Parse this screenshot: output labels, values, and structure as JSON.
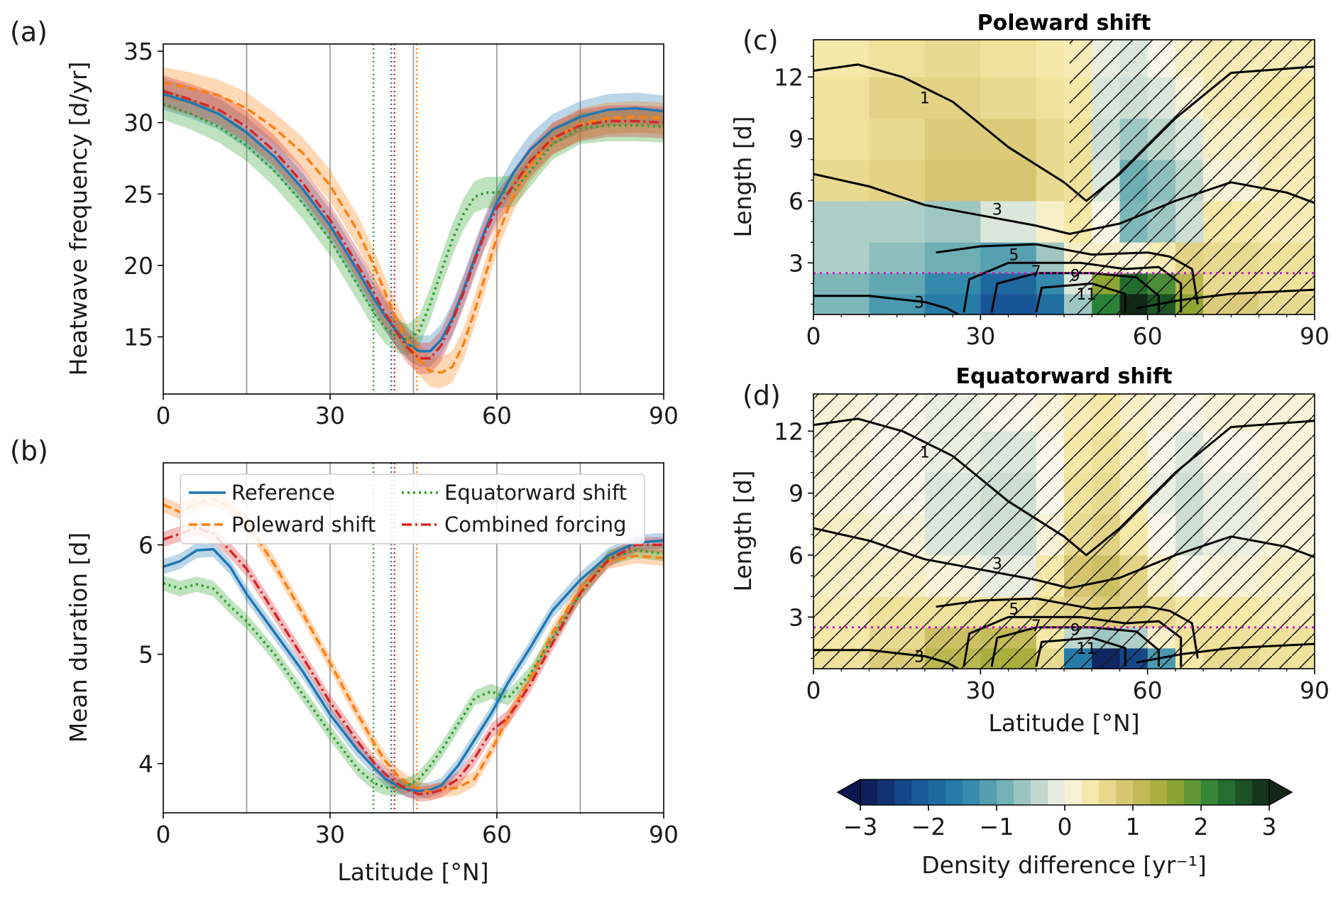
{
  "colors": {
    "reference": "#1f77b4",
    "poleward": "#ff7f0e",
    "equatorward": "#2ca02c",
    "combined": "#d62728",
    "threshold_line": "#c51bc5"
  },
  "panels": {
    "a": {
      "label": "(a)",
      "ylabel": "Heatwave frequency [d/yr]",
      "xlabel": ""
    },
    "b": {
      "label": "(b)",
      "ylabel": "Mean duration [d]",
      "xlabel": "Latitude [°N]"
    },
    "c": {
      "label": "(c)",
      "title": "Poleward shift",
      "ylabel": "Length [d]",
      "xlabel": ""
    },
    "d": {
      "label": "(d)",
      "title": "Equatorward shift",
      "ylabel": "Length [d]",
      "xlabel": "Latitude [°N]"
    }
  },
  "legend": {
    "reference": "Reference",
    "poleward": "Poleward shift",
    "equatorward": "Equatorward shift",
    "combined": "Combined forcing"
  },
  "colorbar": {
    "label": "Density difference [yr⁻¹]",
    "ticks": [
      "−3",
      "−2",
      "−1",
      "0",
      "1",
      "2",
      "3"
    ],
    "range": [
      -3,
      3
    ]
  },
  "chart_data": [
    {
      "panel": "a",
      "type": "line",
      "xlabel": "",
      "ylabel": "Heatwave frequency [d/yr]",
      "xlim": [
        0,
        90
      ],
      "ylim": [
        11,
        35.5
      ],
      "xticks": [
        "0",
        "30",
        "60",
        "90"
      ],
      "yticks": [
        "15",
        "20",
        "25",
        "30",
        "35"
      ],
      "grid_x": [
        15,
        30,
        45,
        60,
        75
      ],
      "vlines": [
        {
          "series": "Equatorward shift",
          "x": 37.8
        },
        {
          "series": "Reference",
          "x": 41.0
        },
        {
          "series": "Combined forcing",
          "x": 41.6
        },
        {
          "series": "Poleward shift",
          "x": 45.6
        }
      ],
      "x": [
        0,
        5,
        10,
        15,
        20,
        25,
        30,
        35,
        38,
        40,
        42,
        44,
        46,
        48,
        50,
        52,
        54,
        56,
        58,
        60,
        63,
        66,
        70,
        75,
        80,
        85,
        90
      ],
      "series": [
        {
          "name": "Reference",
          "values": [
            32.0,
            31.4,
            30.6,
            29.3,
            27.6,
            25.4,
            22.8,
            19.6,
            17.6,
            16.4,
            15.4,
            14.5,
            14.0,
            14.0,
            14.8,
            16.3,
            18.3,
            20.5,
            22.6,
            24.4,
            26.5,
            28.1,
            29.5,
            30.4,
            30.9,
            31.0,
            30.8
          ]
        },
        {
          "name": "Poleward shift",
          "values": [
            32.8,
            32.4,
            31.9,
            31.0,
            29.6,
            27.9,
            25.6,
            22.4,
            19.9,
            18.0,
            16.2,
            14.6,
            13.4,
            12.6,
            12.5,
            12.9,
            14.5,
            16.8,
            19.4,
            22.0,
            24.9,
            27.0,
            28.8,
            29.9,
            30.3,
            30.4,
            30.3
          ]
        },
        {
          "name": "Equatorward shift",
          "values": [
            31.3,
            30.6,
            29.7,
            28.4,
            26.6,
            24.4,
            21.8,
            18.6,
            16.6,
            15.6,
            15.0,
            14.8,
            15.4,
            17.3,
            19.6,
            21.8,
            23.6,
            24.8,
            25.1,
            25.1,
            25.2,
            26.6,
            28.5,
            29.6,
            29.8,
            29.8,
            29.7
          ]
        },
        {
          "name": "Combined forcing",
          "values": [
            32.2,
            31.6,
            30.9,
            29.7,
            28.0,
            25.8,
            23.2,
            20.0,
            18.0,
            16.6,
            15.3,
            14.2,
            13.5,
            13.5,
            14.4,
            16.1,
            18.1,
            20.3,
            22.4,
            24.0,
            25.6,
            27.3,
            28.9,
            29.8,
            30.1,
            30.1,
            30.0
          ]
        }
      ]
    },
    {
      "panel": "b",
      "type": "line",
      "xlabel": "Latitude [°N]",
      "ylabel": "Mean duration [d]",
      "xlim": [
        0,
        90
      ],
      "ylim": [
        3.55,
        6.75
      ],
      "xticks": [
        "0",
        "30",
        "60",
        "90"
      ],
      "yticks": [
        "4",
        "5",
        "6"
      ],
      "grid_x": [
        15,
        30,
        45,
        60,
        75
      ],
      "legend_position": "top-center",
      "vlines": [
        {
          "series": "Equatorward shift",
          "x": 37.8
        },
        {
          "series": "Reference",
          "x": 41.0
        },
        {
          "series": "Combined forcing",
          "x": 41.6
        },
        {
          "series": "Poleward shift",
          "x": 45.6
        }
      ],
      "x": [
        0,
        3,
        6,
        9,
        12,
        15,
        20,
        25,
        30,
        35,
        38,
        40,
        42,
        44,
        46,
        48,
        50,
        53,
        56,
        59,
        62,
        66,
        70,
        75,
        80,
        85,
        90
      ],
      "series": [
        {
          "name": "Reference",
          "values": [
            5.8,
            5.85,
            5.95,
            5.96,
            5.8,
            5.55,
            5.2,
            4.85,
            4.45,
            4.12,
            3.96,
            3.86,
            3.8,
            3.76,
            3.75,
            3.76,
            3.8,
            3.98,
            4.22,
            4.46,
            4.74,
            5.06,
            5.4,
            5.68,
            5.9,
            6.02,
            6.04
          ]
        },
        {
          "name": "Poleward shift",
          "values": [
            6.37,
            6.3,
            6.38,
            6.42,
            6.35,
            6.2,
            5.82,
            5.38,
            4.92,
            4.45,
            4.18,
            4.02,
            3.9,
            3.82,
            3.77,
            3.74,
            3.76,
            3.78,
            3.86,
            4.12,
            4.42,
            4.78,
            5.2,
            5.6,
            5.85,
            5.9,
            5.88
          ]
        },
        {
          "name": "Equatorward shift",
          "values": [
            5.65,
            5.6,
            5.64,
            5.6,
            5.44,
            5.3,
            5.0,
            4.64,
            4.28,
            3.95,
            3.82,
            3.78,
            3.78,
            3.8,
            3.86,
            3.98,
            4.12,
            4.36,
            4.6,
            4.66,
            4.6,
            4.82,
            5.15,
            5.55,
            5.88,
            5.95,
            5.92
          ]
        },
        {
          "name": "Combined forcing",
          "values": [
            6.05,
            6.1,
            6.16,
            6.1,
            5.95,
            5.78,
            5.38,
            4.98,
            4.56,
            4.2,
            4.0,
            3.9,
            3.82,
            3.76,
            3.72,
            3.73,
            3.76,
            3.86,
            4.05,
            4.3,
            4.42,
            4.72,
            5.1,
            5.56,
            5.86,
            6.0,
            6.0
          ]
        }
      ]
    },
    {
      "panel": "c",
      "type": "heatmap",
      "title": "Poleward shift",
      "xlabel": "",
      "ylabel": "Length [d]",
      "xlim": [
        0,
        90
      ],
      "ylim": [
        0.5,
        13.8
      ],
      "xticks": [
        "0",
        "30",
        "60",
        "90"
      ],
      "yticks": [
        "3",
        "6",
        "9",
        "12"
      ],
      "threshold_y": 2.5,
      "hatched_x_range": [
        46,
        90
      ],
      "lat_bands": [
        0,
        10,
        20,
        30,
        40,
        45,
        50,
        55,
        60,
        65,
        70,
        80,
        90
      ],
      "length_bands": [
        0.5,
        1.5,
        2.5,
        4,
        6,
        8,
        10,
        12,
        13.8
      ],
      "values": [
        [
          -0.8,
          -1.2,
          -1.6,
          -2.2,
          -1.8,
          -0.6,
          2.2,
          3.0,
          2.6,
          1.6,
          0.8,
          0.6
        ],
        [
          -0.8,
          -1.0,
          -1.4,
          -1.9,
          -1.4,
          -0.2,
          1.6,
          2.4,
          2.0,
          1.2,
          0.6,
          0.5
        ],
        [
          -0.5,
          -0.7,
          -0.9,
          -1.1,
          -0.6,
          0.2,
          0.2,
          0.1,
          0.3,
          0.7,
          0.6,
          0.5
        ],
        [
          -0.5,
          -0.5,
          -0.6,
          -0.2,
          0.2,
          0.4,
          0.0,
          -0.8,
          -0.6,
          -0.3,
          0.4,
          0.3
        ],
        [
          0.6,
          0.7,
          0.9,
          0.9,
          0.6,
          0.5,
          -0.2,
          -0.9,
          -0.7,
          -0.4,
          0.1,
          0.3
        ],
        [
          0.5,
          0.6,
          0.8,
          0.8,
          0.6,
          0.5,
          -0.3,
          -0.6,
          -0.4,
          -0.2,
          0.2,
          0.3
        ],
        [
          0.5,
          0.7,
          0.7,
          0.6,
          0.5,
          0.4,
          -0.2,
          -0.3,
          -0.2,
          0.1,
          0.3,
          0.4
        ],
        [
          0.4,
          0.5,
          0.6,
          0.5,
          0.4,
          0.3,
          -0.1,
          -0.2,
          0.0,
          0.2,
          0.3,
          0.3
        ]
      ],
      "contour_labels": [
        "1",
        "3",
        "5",
        "7",
        "9",
        "11",
        "3"
      ]
    },
    {
      "panel": "d",
      "type": "heatmap",
      "title": "Equatorward shift",
      "xlabel": "Latitude [°N]",
      "ylabel": "Length [d]",
      "xlim": [
        0,
        90
      ],
      "ylim": [
        0.5,
        13.8
      ],
      "xticks": [
        "0",
        "30",
        "60",
        "90"
      ],
      "yticks": [
        "3",
        "6",
        "9",
        "12"
      ],
      "threshold_y": 2.5,
      "hatched_x_range": [
        0,
        90
      ],
      "lat_bands": [
        0,
        10,
        20,
        30,
        40,
        45,
        50,
        55,
        60,
        65,
        70,
        80,
        90
      ],
      "length_bands": [
        0.5,
        1.5,
        2.5,
        4,
        6,
        8,
        10,
        12,
        13.8
      ],
      "values": [
        [
          0.5,
          0.8,
          1.2,
          1.4,
          0.6,
          -1.6,
          -2.8,
          -2.4,
          -1.2,
          0.4,
          0.6,
          0.5
        ],
        [
          0.4,
          0.6,
          1.0,
          1.1,
          0.4,
          -0.4,
          -0.6,
          -0.5,
          0.2,
          0.5,
          0.5,
          0.5
        ],
        [
          0.3,
          0.5,
          0.5,
          0.5,
          0.6,
          0.7,
          0.8,
          0.7,
          0.6,
          0.4,
          0.4,
          0.3
        ],
        [
          0.2,
          0.2,
          0.1,
          -0.1,
          0.4,
          0.9,
          1.0,
          0.7,
          0.2,
          0.0,
          0.1,
          0.2
        ],
        [
          0.2,
          0.1,
          -0.2,
          -0.3,
          0.1,
          0.6,
          0.7,
          0.4,
          0.0,
          -0.3,
          -0.1,
          0.1
        ],
        [
          0.1,
          0.0,
          -0.2,
          -0.3,
          0.0,
          0.5,
          0.6,
          0.3,
          -0.1,
          -0.3,
          -0.1,
          0.1
        ],
        [
          0.1,
          0.0,
          -0.1,
          -0.2,
          0.0,
          0.4,
          0.5,
          0.3,
          0.0,
          -0.2,
          0.0,
          0.1
        ],
        [
          0.1,
          0.0,
          -0.1,
          0.0,
          0.1,
          0.3,
          0.4,
          0.2,
          0.1,
          0.0,
          0.1,
          0.1
        ]
      ],
      "contour_labels": [
        "1",
        "3",
        "5",
        "7",
        "9",
        "11",
        "3"
      ]
    }
  ]
}
